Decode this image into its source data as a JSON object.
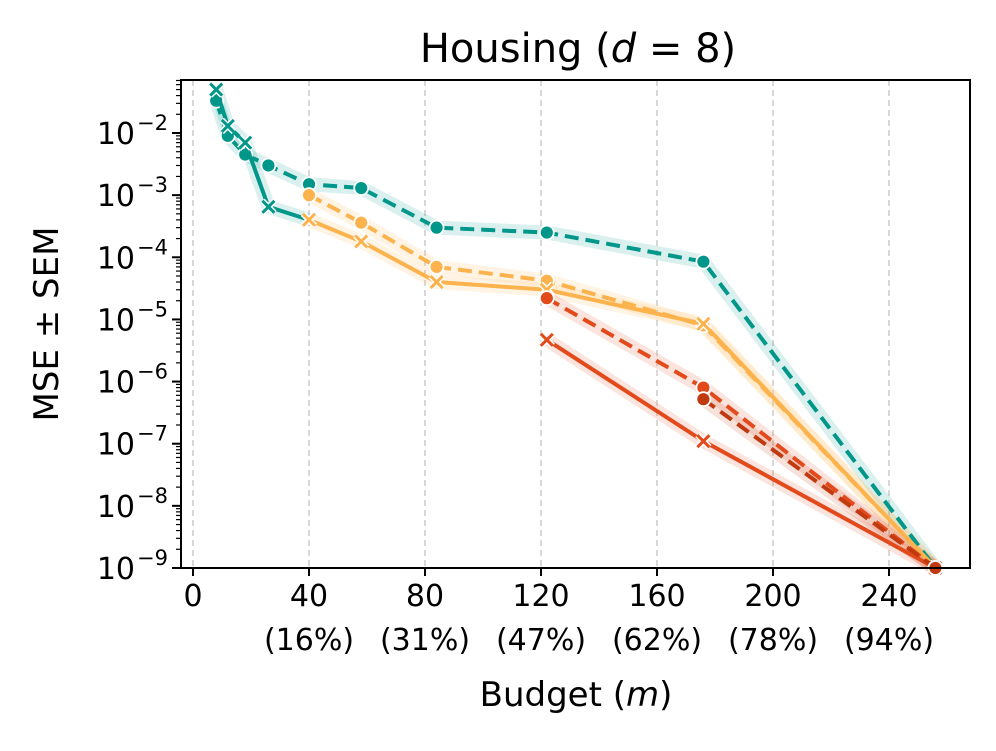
{
  "chart_data": {
    "type": "line",
    "title": "Housing (d = 8)",
    "title_parts": {
      "prefix": "Housing (",
      "var": "d",
      "suffix": " = 8)"
    },
    "xlabel": "Budget (m)",
    "xlabel_parts": {
      "prefix": "Budget (",
      "var": "m",
      "suffix": ")"
    },
    "ylabel": "MSE ± SEM",
    "yscale": "log",
    "xlim": [
      -3,
      268
    ],
    "ylim_exp": [
      -9,
      -1.2
    ],
    "grid": "x-dashed",
    "x_ticks": [
      {
        "value": 0,
        "label": "0",
        "pct": ""
      },
      {
        "value": 40,
        "label": "40",
        "pct": "(16%)"
      },
      {
        "value": 80,
        "label": "80",
        "pct": "(31%)"
      },
      {
        "value": 120,
        "label": "120",
        "pct": "(47%)"
      },
      {
        "value": 160,
        "label": "160",
        "pct": "(62%)"
      },
      {
        "value": 200,
        "label": "200",
        "pct": "(78%)"
      },
      {
        "value": 240,
        "label": "240",
        "pct": "(94%)"
      }
    ],
    "y_ticks": [
      {
        "exp": -2,
        "base": "10",
        "sup": "−2"
      },
      {
        "exp": -3,
        "base": "10",
        "sup": "−3"
      },
      {
        "exp": -4,
        "base": "10",
        "sup": "−4"
      },
      {
        "exp": -5,
        "base": "10",
        "sup": "−5"
      },
      {
        "exp": -6,
        "base": "10",
        "sup": "−6"
      },
      {
        "exp": -7,
        "base": "10",
        "sup": "−7"
      },
      {
        "exp": -8,
        "base": "10",
        "sup": "−8"
      },
      {
        "exp": -9,
        "base": "10",
        "sup": "−9"
      }
    ],
    "series": [
      {
        "name": "teal-dashed",
        "color": "#00978a",
        "dash": "dashed",
        "marker": "circle",
        "x": [
          8,
          12,
          18,
          26,
          40,
          58,
          84,
          122,
          176,
          256
        ],
        "y": [
          0.033,
          0.009,
          0.0045,
          0.003,
          0.0015,
          0.0013,
          0.0003,
          0.00025,
          8.5e-05,
          1e-09
        ]
      },
      {
        "name": "teal-solid",
        "color": "#00978a",
        "dash": "solid",
        "marker": "x",
        "x": [
          8,
          12,
          18,
          26,
          40
        ],
        "y": [
          0.05,
          0.013,
          0.007,
          0.00065,
          0.0004
        ]
      },
      {
        "name": "orange-dashed",
        "color": "#fdb34d",
        "dash": "dashed",
        "marker": "circle",
        "x": [
          40,
          58,
          84,
          122,
          176,
          256
        ],
        "y": [
          0.001,
          0.00036,
          7e-05,
          4.2e-05,
          8e-06,
          1e-09
        ]
      },
      {
        "name": "orange-solid",
        "color": "#fdb34d",
        "dash": "solid",
        "marker": "x",
        "x": [
          40,
          58,
          84,
          122,
          176,
          256
        ],
        "y": [
          0.0004,
          0.00018,
          4e-05,
          3e-05,
          8.5e-06,
          1e-09
        ]
      },
      {
        "name": "red-dashed",
        "color": "#e34a1b",
        "dash": "dashed",
        "marker": "circle",
        "x": [
          122,
          176,
          256
        ],
        "y": [
          2.2e-05,
          8e-07,
          1e-09
        ]
      },
      {
        "name": "red-solid",
        "color": "#e34a1b",
        "dash": "solid",
        "marker": "x",
        "x": [
          122,
          176,
          256
        ],
        "y": [
          4.7e-06,
          1.1e-07,
          1e-09
        ]
      },
      {
        "name": "darkred-dashed",
        "color": "#c0390f",
        "dash": "dashed",
        "marker": "circle",
        "x": [
          176,
          256
        ],
        "y": [
          5.2e-07,
          1e-09
        ]
      }
    ]
  }
}
